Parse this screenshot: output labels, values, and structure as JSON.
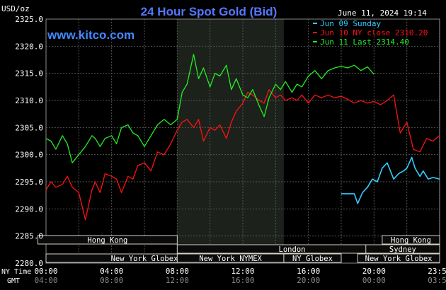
{
  "chart_data": {
    "type": "line",
    "title": "24 Hour Spot Gold (Bid)",
    "subtitle": "June 11, 2024 19:14",
    "site": "www.kitco.com",
    "ylabel": "USD/oz",
    "ylim": [
      2280,
      2325
    ],
    "y_ticks": [
      "2280.0",
      "2285.0",
      "2290.0",
      "2295.0",
      "2300.0",
      "2305.0",
      "2310.0",
      "2315.0",
      "2320.0",
      "2325.0"
    ],
    "x_row_label_ny": "NY Time",
    "x_row_label_gmt": "GMT",
    "x_ticks_ny": [
      "00:00",
      "04:00",
      "08:00",
      "12:00",
      "16:00",
      "20:00",
      "23:59"
    ],
    "x_ticks_gmt": [
      "04:00",
      "08:00",
      "12:00",
      "16:00",
      "20:00",
      "00:00",
      "03:59"
    ],
    "x_unit": "hours (NY time)",
    "grid": true,
    "legend_position": "top-right",
    "shaded_period": [
      8.0,
      14.5
    ],
    "sessions": [
      {
        "label": "Hong Kong",
        "start": -0.5,
        "end": 8.0,
        "row": 0
      },
      {
        "label": "London",
        "start": 8.0,
        "end": 22.0,
        "row": 1
      },
      {
        "label": "New York Globex",
        "start": 0.0,
        "end": 12.0,
        "row": 2
      },
      {
        "label": "New York NYMEX",
        "start": 8.0,
        "end": 14.5,
        "row": 2
      },
      {
        "label": "NY Globex",
        "start": 14.5,
        "end": 18.0,
        "row": 2
      },
      {
        "label": "Hong Kong",
        "start": 20.5,
        "end": 24.0,
        "row": 0
      },
      {
        "label": "Sydney",
        "start": 19.5,
        "end": 24.0,
        "row": 1
      },
      {
        "label": "New York Globex",
        "start": 19.0,
        "end": 24.0,
        "row": 2
      }
    ],
    "series": [
      {
        "name": "Jun 09 Sunday",
        "legend": "Jun 09 Sunday",
        "color": "#33ccff",
        "x": [
          18.0,
          18.8,
          19.0,
          19.3,
          19.6,
          19.9,
          20.2,
          20.5,
          20.8,
          21.0,
          21.2,
          21.5,
          21.8,
          22.0,
          22.3,
          22.5,
          22.8,
          23.0,
          23.3,
          23.6,
          23.99
        ],
        "y": [
          2292.8,
          2292.8,
          2291.0,
          2293.0,
          2294.0,
          2295.5,
          2295.0,
          2297.5,
          2298.5,
          2297.0,
          2295.5,
          2296.5,
          2297.0,
          2297.5,
          2299.5,
          2297.5,
          2296.0,
          2297.0,
          2295.5,
          2295.8,
          2295.5
        ]
      },
      {
        "name": "Jun 10 NY close",
        "legend": "Jun 10 NY close 2310.20",
        "color": "#ff1111",
        "x": [
          0.0,
          0.3,
          0.6,
          1.0,
          1.3,
          1.6,
          2.0,
          2.4,
          2.8,
          3.0,
          3.3,
          3.6,
          4.0,
          4.3,
          4.6,
          5.0,
          5.3,
          5.6,
          6.0,
          6.4,
          6.8,
          7.2,
          7.6,
          8.0,
          8.3,
          8.6,
          9.0,
          9.3,
          9.6,
          10.0,
          10.3,
          10.6,
          11.0,
          11.3,
          11.6,
          12.0,
          12.3,
          12.6,
          13.0,
          13.3,
          13.6,
          14.0,
          14.3,
          14.6,
          15.0,
          15.3,
          15.6,
          16.0,
          16.4,
          16.8,
          17.2,
          17.6,
          18.0,
          18.4,
          18.8,
          19.2,
          19.6,
          20.0,
          20.4,
          20.8,
          21.2,
          21.6,
          22.0,
          22.4,
          22.8,
          23.2,
          23.6,
          23.99
        ],
        "y": [
          2293.5,
          2295.0,
          2294.0,
          2294.5,
          2296.0,
          2294.0,
          2293.0,
          2288.0,
          2293.5,
          2295.0,
          2293.0,
          2296.5,
          2296.0,
          2295.5,
          2293.0,
          2296.0,
          2295.5,
          2298.0,
          2298.5,
          2297.0,
          2300.5,
          2300.0,
          2302.0,
          2304.5,
          2306.0,
          2306.5,
          2305.0,
          2306.5,
          2302.5,
          2305.0,
          2304.5,
          2305.5,
          2303.0,
          2306.0,
          2308.0,
          2309.5,
          2311.5,
          2311.0,
          2310.0,
          2309.5,
          2312.0,
          2310.5,
          2311.0,
          2310.0,
          2310.5,
          2310.0,
          2311.0,
          2309.5,
          2311.0,
          2310.5,
          2311.0,
          2310.5,
          2310.8,
          2310.2,
          2309.5,
          2310.0,
          2309.5,
          2309.8,
          2309.2,
          2310.0,
          2311.0,
          2304.0,
          2306.0,
          2301.0,
          2300.5,
          2303.0,
          2302.5,
          2303.5
        ]
      },
      {
        "name": "Jun 11 Last",
        "legend": "Jun 11 Last 2314.40",
        "color": "#22ee22",
        "x": [
          0.0,
          0.3,
          0.6,
          1.0,
          1.3,
          1.6,
          2.0,
          2.4,
          2.8,
          3.0,
          3.3,
          3.6,
          4.0,
          4.3,
          4.6,
          5.0,
          5.3,
          5.6,
          6.0,
          6.4,
          6.8,
          7.2,
          7.6,
          8.0,
          8.3,
          8.6,
          9.0,
          9.3,
          9.6,
          10.0,
          10.3,
          10.6,
          11.0,
          11.3,
          11.6,
          12.0,
          12.3,
          12.6,
          13.0,
          13.3,
          13.6,
          14.0,
          14.3,
          14.6,
          15.0,
          15.3,
          15.6,
          16.0,
          16.4,
          16.8,
          17.2,
          17.6,
          18.0,
          18.4,
          18.8,
          19.2,
          19.6,
          20.0
        ],
        "y": [
          2303.0,
          2302.5,
          2301.0,
          2303.5,
          2302.0,
          2298.5,
          2300.0,
          2301.5,
          2303.5,
          2303.0,
          2301.5,
          2303.0,
          2303.5,
          2302.0,
          2305.0,
          2305.5,
          2304.0,
          2303.5,
          2301.5,
          2303.5,
          2305.5,
          2306.5,
          2305.5,
          2306.5,
          2311.5,
          2313.0,
          2318.5,
          2314.0,
          2316.0,
          2312.5,
          2315.0,
          2314.5,
          2316.5,
          2312.0,
          2314.0,
          2311.0,
          2310.5,
          2312.0,
          2309.0,
          2307.0,
          2310.5,
          2313.0,
          2312.0,
          2313.5,
          2311.5,
          2313.0,
          2312.5,
          2314.5,
          2315.5,
          2314.0,
          2315.5,
          2316.0,
          2316.3,
          2316.0,
          2316.5,
          2315.5,
          2316.2,
          2314.8
        ]
      }
    ]
  }
}
